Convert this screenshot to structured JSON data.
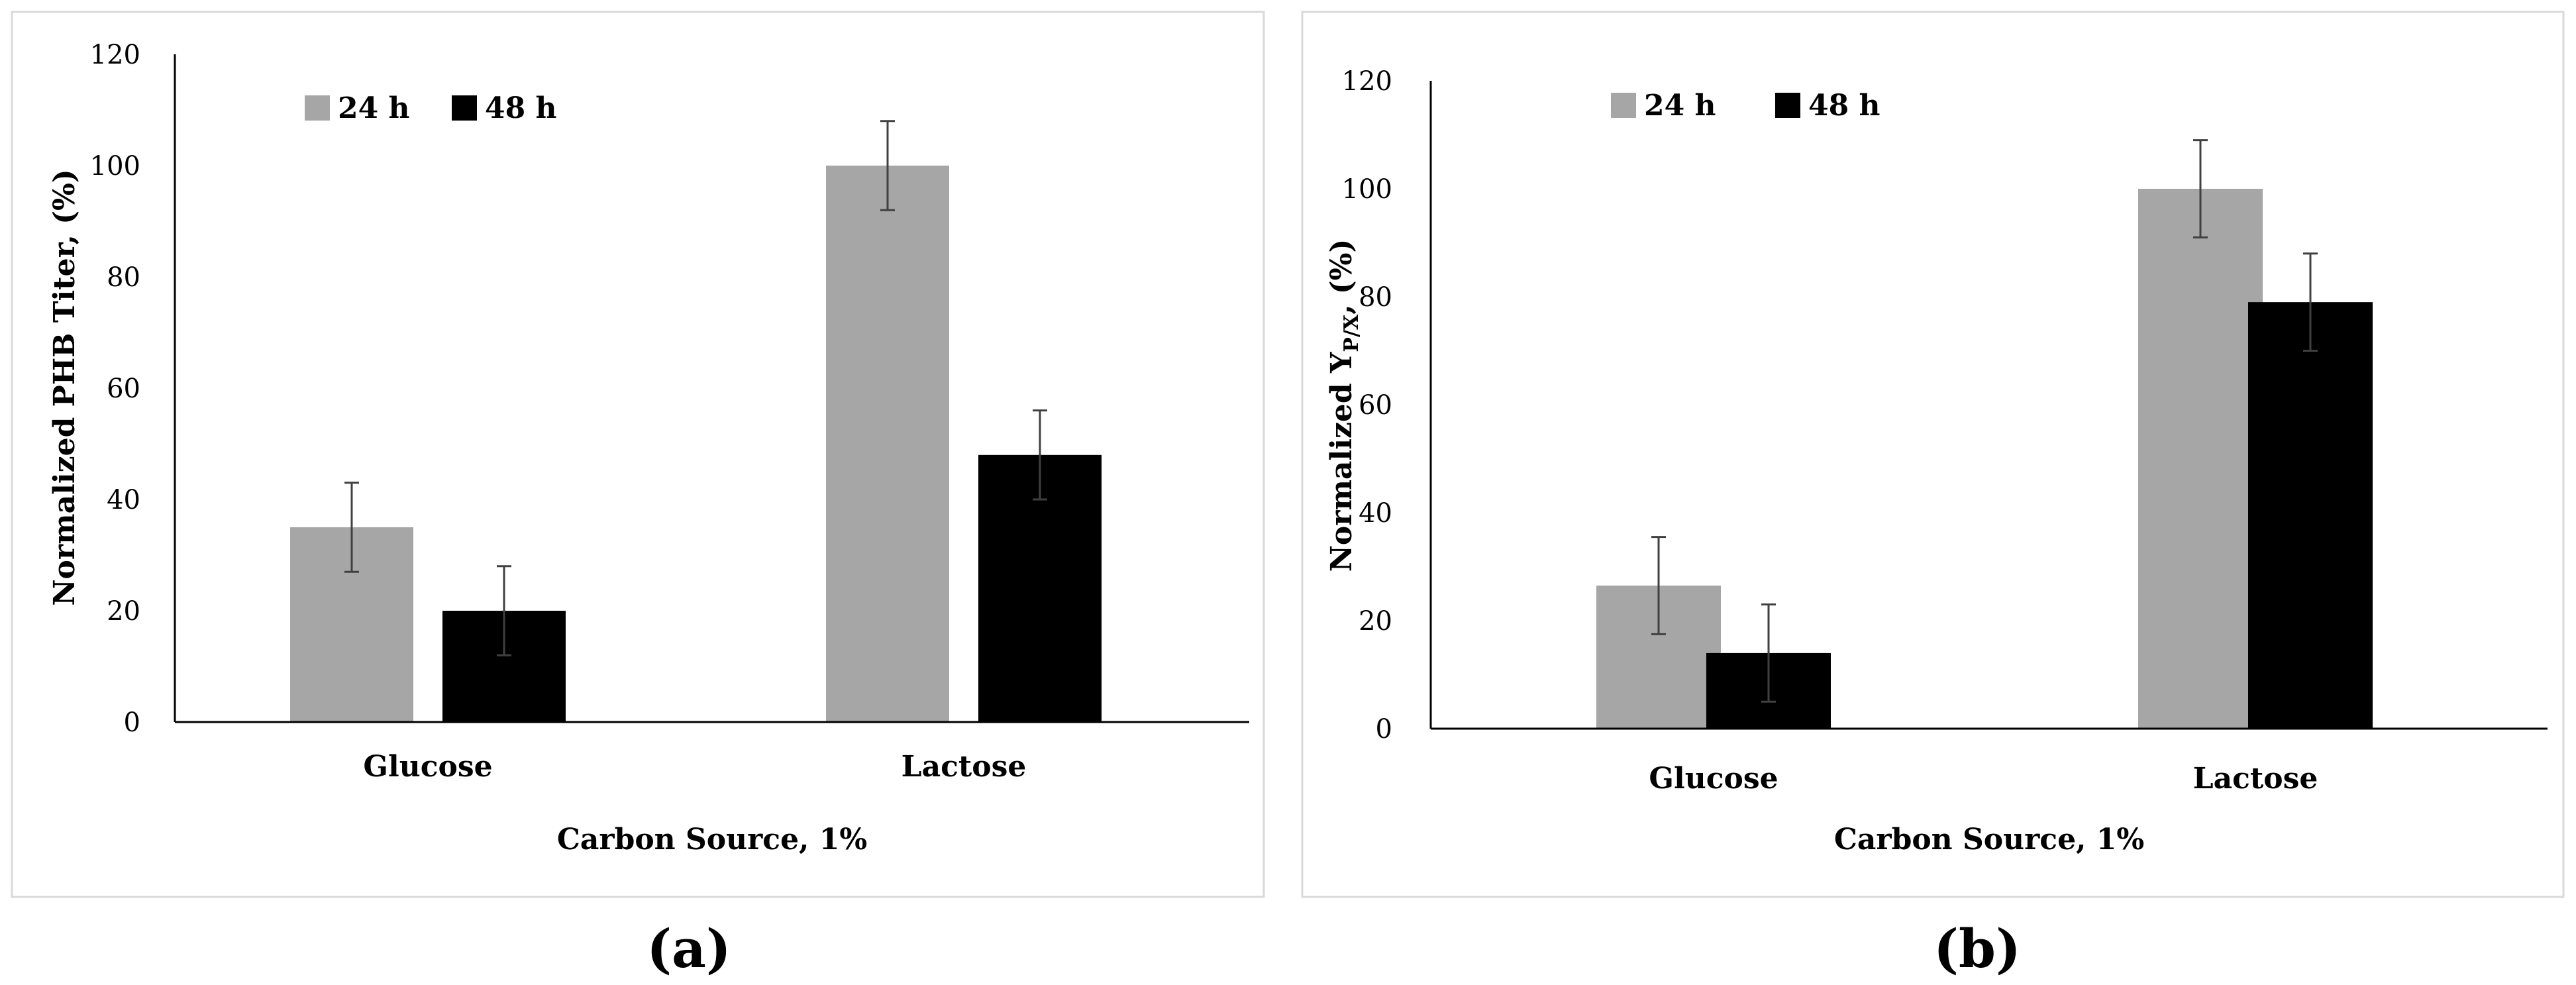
{
  "chart_data": [
    {
      "type": "bar",
      "panel_label": "(a)",
      "categories": [
        "Glucose",
        "Lactose"
      ],
      "series": [
        {
          "name": "24 h",
          "color": "#a6a6a6",
          "values": [
            35,
            100
          ],
          "errors": [
            8,
            8
          ]
        },
        {
          "name": "48 h",
          "color": "#000000",
          "values": [
            20,
            48
          ],
          "errors": [
            8,
            8
          ]
        }
      ],
      "xlabel": "Carbon Source, 1%",
      "ylabel": "Normalized  PHB Titer, (%)",
      "ylim": [
        0,
        120
      ],
      "yticks": [
        0,
        20,
        40,
        60,
        80,
        100,
        120
      ],
      "legend_position": "top-left",
      "grid": false
    },
    {
      "type": "bar",
      "panel_label": "(b)",
      "categories": [
        "Glucose",
        "Lactose"
      ],
      "series": [
        {
          "name": "24 h",
          "color": "#a6a6a6",
          "values": [
            26.5,
            100
          ],
          "errors": [
            9,
            9
          ]
        },
        {
          "name": "48 h",
          "color": "#000000",
          "values": [
            14,
            79
          ],
          "errors": [
            9,
            9
          ]
        }
      ],
      "xlabel": "Carbon Source, 1%",
      "ylabel": "Normalized Y",
      "ylabel_subscript": "P/X",
      "ylabel_suffix": ", (%)",
      "ylim": [
        0,
        120
      ],
      "yticks": [
        0,
        20,
        40,
        60,
        80,
        100,
        120
      ],
      "legend_position": "top-center",
      "grid": false
    }
  ]
}
